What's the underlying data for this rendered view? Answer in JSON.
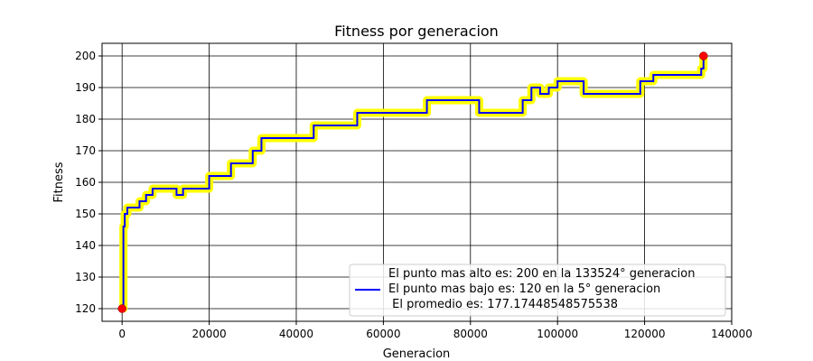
{
  "chart_data": {
    "type": "line",
    "title": "Fitness por generacion",
    "xlabel": "Generacion",
    "ylabel": "Fitness",
    "xlim": [
      -4600,
      140000
    ],
    "ylim": [
      116.0,
      204.0
    ],
    "xticks": [
      0,
      20000,
      40000,
      60000,
      80000,
      100000,
      120000,
      140000
    ],
    "xtick_labels": [
      "0",
      "20000",
      "40000",
      "60000",
      "80000",
      "100000",
      "120000",
      "140000"
    ],
    "yticks": [
      120,
      130,
      140,
      150,
      160,
      170,
      180,
      190,
      200
    ],
    "ytick_labels": [
      "120",
      "130",
      "140",
      "150",
      "160",
      "170",
      "180",
      "190",
      "200"
    ],
    "grid": true,
    "legend_position": "lower-right",
    "legend_lines": [
      "El punto mas alto es: 200 en la 133524° generacion",
      "El punto mas bajo es: 120 en la 5° generacion",
      " El promedio es: 177.17448548575538"
    ],
    "colors": {
      "line": "#0000ff",
      "highlight": "#ffff00",
      "points": "#ff0000",
      "grid": "#000000"
    },
    "series": [
      {
        "values_desc": "",
        "x": [
          0,
          300,
          600,
          1200,
          2500,
          4000,
          5500,
          7000,
          9000,
          11000,
          12500,
          14000,
          16000,
          18500,
          20000,
          23000,
          25000,
          28000,
          30000,
          32000,
          36000,
          40000,
          42000,
          44000,
          48000,
          52000,
          54000,
          58000,
          62000,
          66000,
          70000,
          74000,
          78000,
          82000,
          84000,
          86000,
          88000,
          90000,
          92000,
          94000,
          96000,
          98000,
          100000,
          103000,
          106000,
          109000,
          112000,
          115000,
          118000,
          119000,
          120000,
          122000,
          125000,
          128000,
          131000,
          133000,
          133524
        ],
        "y": [
          120,
          146,
          150,
          152,
          152,
          154,
          156,
          158,
          158,
          158,
          156,
          158,
          158,
          158,
          162,
          162,
          166,
          166,
          170,
          174,
          174,
          174,
          174,
          178,
          178,
          178,
          182,
          182,
          182,
          182,
          186,
          186,
          186,
          182,
          182,
          182,
          182,
          182,
          186,
          190,
          188,
          190,
          192,
          192,
          188,
          188,
          188,
          188,
          188,
          192,
          192,
          194,
          194,
          194,
          194,
          196,
          200
        ]
      }
    ],
    "markers": [
      {
        "x": 5,
        "y": 120
      },
      {
        "x": 133524,
        "y": 200
      }
    ]
  }
}
